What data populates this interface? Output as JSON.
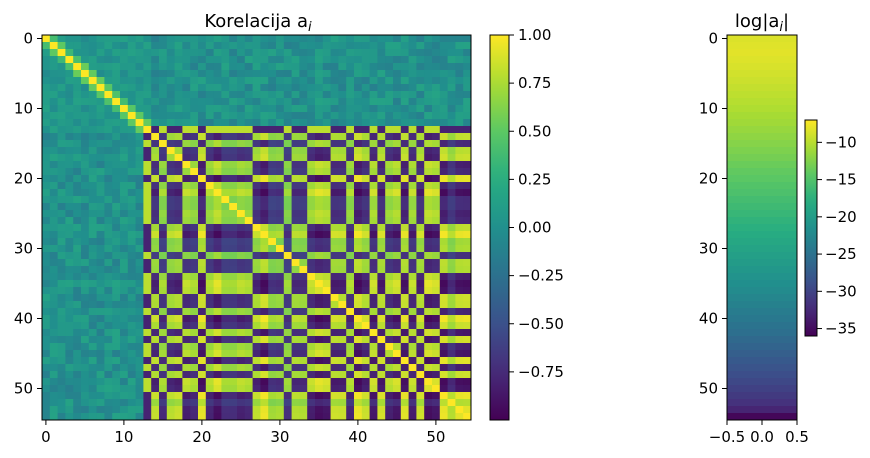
{
  "chart_data": [
    {
      "type": "heatmap",
      "title": "Korelacija a",
      "title_subscript": "i",
      "rows": 55,
      "cols": 55,
      "x_ticks": [
        "0",
        "10",
        "20",
        "30",
        "40",
        "50"
      ],
      "y_ticks": [
        "0",
        "10",
        "20",
        "30",
        "40",
        "50"
      ],
      "colormap": "viridis",
      "value_range": [
        -1.0,
        1.0
      ],
      "description_of_values": "diagonal = 1; indices 0-13 weakly correlated (~0.1); indices 14-54 strongly correlated with a checkerboard pattern of values close to +1 and -1",
      "colorbar": {
        "ticks": [
          "1.00",
          "0.75",
          "0.50",
          "0.25",
          "0.00",
          "−0.25",
          "−0.50",
          "−0.75"
        ],
        "tick_values": [
          1.0,
          0.75,
          0.5,
          0.25,
          0.0,
          -0.25,
          -0.5,
          -0.75
        ]
      }
    },
    {
      "type": "heatmap",
      "title": "log|a",
      "title_subscript": "i",
      "title_suffix": "|",
      "rows": 55,
      "cols": 1,
      "x_ticks": [
        "−0.5",
        "0.0",
        "0.5"
      ],
      "y_ticks": [
        "0",
        "10",
        "20",
        "30",
        "40",
        "50"
      ],
      "colormap": "viridis",
      "value_range": [
        -36,
        -7
      ],
      "values": [
        -8.5,
        -8.3,
        -8.2,
        -8.4,
        -8.6,
        -8.9,
        -9.2,
        -9.5,
        -9.8,
        -10.1,
        -10.4,
        -10.8,
        -11.1,
        -11.5,
        -11.9,
        -12.3,
        -12.7,
        -13.1,
        -13.6,
        -14.0,
        -14.4,
        -14.9,
        -15.3,
        -15.8,
        -16.2,
        -16.7,
        -17.2,
        -17.6,
        -18.1,
        -18.6,
        -19.1,
        -19.6,
        -20.1,
        -20.6,
        -21.1,
        -21.6,
        -22.1,
        -22.7,
        -23.2,
        -23.8,
        -24.3,
        -24.9,
        -25.4,
        -26.0,
        -26.6,
        -27.2,
        -27.8,
        -28.4,
        -29.0,
        -29.6,
        -30.3,
        -31.0,
        -31.8,
        -33.0,
        -35.5
      ],
      "colorbar": {
        "ticks": [
          "−10",
          "−15",
          "−20",
          "−25",
          "−30",
          "−35"
        ],
        "tick_values": [
          -10,
          -15,
          -20,
          -25,
          -30,
          -35
        ]
      }
    }
  ]
}
